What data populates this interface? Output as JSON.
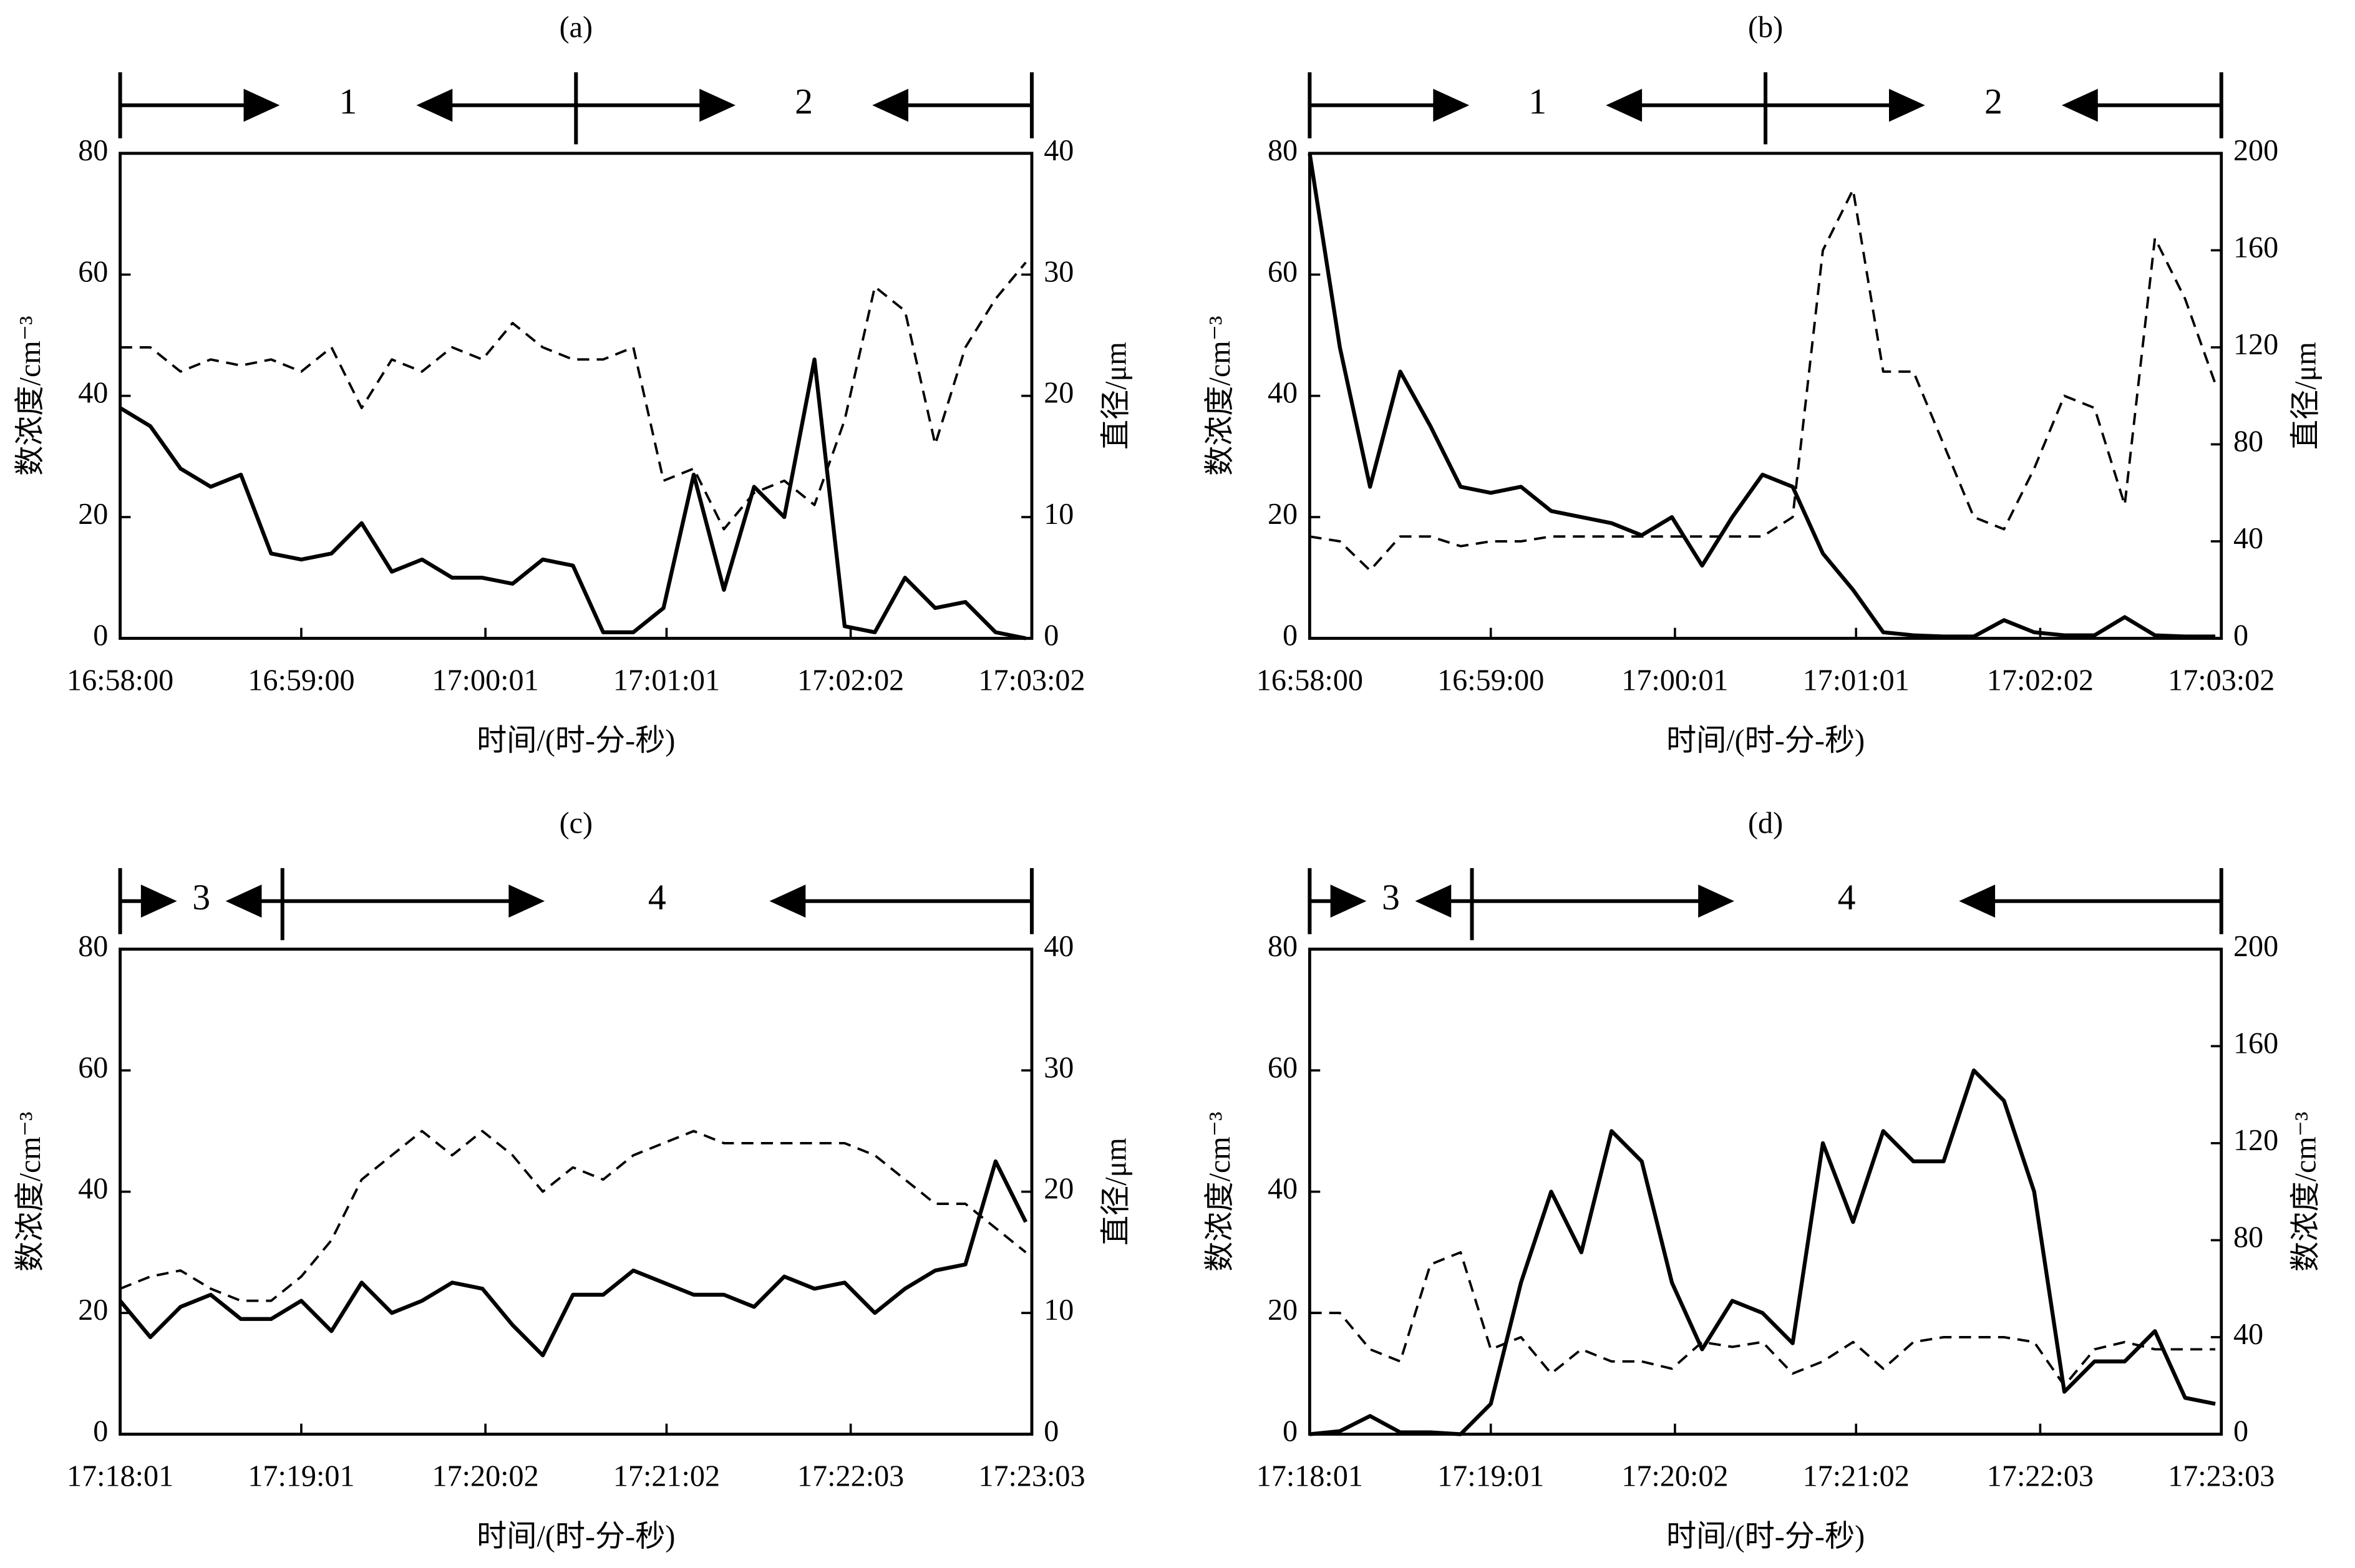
{
  "chart_data": [
    {
      "type": "line",
      "title": "(a)",
      "annotations": [
        "1",
        "2"
      ],
      "x": [
        "16:58:00",
        "16:58:10",
        "16:58:20",
        "16:58:30",
        "16:58:40",
        "16:58:50",
        "16:59:00",
        "16:59:10",
        "16:59:20",
        "16:59:30",
        "16:59:40",
        "16:59:50",
        "17:00:00",
        "17:00:10",
        "17:00:20",
        "17:00:30",
        "17:00:40",
        "17:00:50",
        "17:01:00",
        "17:01:10",
        "17:01:20",
        "17:01:30",
        "17:01:40",
        "17:01:50",
        "17:02:00",
        "17:02:10",
        "17:02:20",
        "17:02:30",
        "17:02:40",
        "17:02:50",
        "17:03:00"
      ],
      "series": [
        {
          "style": "solid",
          "color": "#000000",
          "values": [
            38,
            35,
            28,
            25,
            27,
            14,
            13,
            14,
            19,
            11,
            13,
            10,
            10,
            9,
            13,
            12,
            1,
            1,
            5,
            27,
            8,
            25,
            20,
            46,
            2,
            1,
            10,
            5,
            6,
            1,
            0
          ]
        },
        {
          "style": "dashed",
          "color": "#000000",
          "axis": "y2",
          "values": [
            24,
            24,
            22,
            23,
            22.5,
            23,
            22,
            24,
            19,
            23,
            22,
            24,
            23,
            26,
            24,
            23,
            23,
            24,
            13,
            14,
            9,
            12,
            13,
            11,
            18,
            29,
            27,
            16,
            24,
            28,
            31
          ]
        }
      ],
      "xlim": [
        "16:58:00",
        "17:03:02"
      ],
      "xticks": [
        "16:58:00",
        "16:59:00",
        "17:00:01",
        "17:01:01",
        "17:02:02",
        "17:03:02"
      ],
      "ylim": [
        0,
        80
      ],
      "yticks": [
        0,
        20,
        40,
        60,
        80
      ],
      "y2lim": [
        0,
        40
      ],
      "y2ticks": [
        0,
        10,
        20,
        30,
        40
      ],
      "xlabel": "时间/(时-分-秒)",
      "ylabel": "数浓度/cm⁻³",
      "y2label": "直径/μm"
    },
    {
      "type": "line",
      "title": "(b)",
      "annotations": [
        "1",
        "2"
      ],
      "x": [
        "16:58:00",
        "16:58:10",
        "16:58:20",
        "16:58:30",
        "16:58:40",
        "16:58:50",
        "16:59:00",
        "16:59:10",
        "16:59:20",
        "16:59:30",
        "16:59:40",
        "16:59:50",
        "17:00:00",
        "17:00:10",
        "17:00:20",
        "17:00:30",
        "17:00:40",
        "17:00:50",
        "17:01:00",
        "17:01:10",
        "17:01:20",
        "17:01:30",
        "17:01:40",
        "17:01:50",
        "17:02:00",
        "17:02:10",
        "17:02:20",
        "17:02:30",
        "17:02:40",
        "17:02:50",
        "17:03:00"
      ],
      "series": [
        {
          "style": "solid",
          "color": "#000000",
          "values": [
            80,
            48,
            25,
            44,
            35,
            25,
            24,
            25,
            21,
            20,
            19,
            17,
            20,
            12,
            20,
            27,
            25,
            14,
            8,
            1,
            0.5,
            0.3,
            0.3,
            3,
            1,
            0.5,
            0.5,
            3.5,
            0.5,
            0.3,
            0.3
          ]
        },
        {
          "style": "dashed",
          "color": "#000000",
          "axis": "y2",
          "values": [
            42,
            40,
            28,
            42,
            42,
            38,
            40,
            40,
            42,
            42,
            42,
            42,
            42,
            42,
            42,
            42,
            50,
            160,
            185,
            110,
            110,
            80,
            50,
            45,
            70,
            100,
            95,
            55,
            165,
            140,
            105
          ]
        }
      ],
      "xlim": [
        "16:58:00",
        "17:03:02"
      ],
      "xticks": [
        "16:58:00",
        "16:59:00",
        "17:00:01",
        "17:01:01",
        "17:02:02",
        "17:03:02"
      ],
      "ylim": [
        0,
        80
      ],
      "yticks": [
        0,
        20,
        40,
        60,
        80
      ],
      "y2lim": [
        0,
        200
      ],
      "y2ticks": [
        0,
        40,
        80,
        120,
        160,
        200
      ],
      "xlabel": "时间/(时-分-秒)",
      "ylabel": "数浓度/cm⁻³",
      "y2label": "直径/μm"
    },
    {
      "type": "line",
      "title": "(c)",
      "annotations": [
        "3",
        "4"
      ],
      "x": [
        "17:18:01",
        "17:18:11",
        "17:18:21",
        "17:18:31",
        "17:18:41",
        "17:18:51",
        "17:19:01",
        "17:19:11",
        "17:19:21",
        "17:19:31",
        "17:19:41",
        "17:19:51",
        "17:20:01",
        "17:20:11",
        "17:20:21",
        "17:20:31",
        "17:20:41",
        "17:20:51",
        "17:21:01",
        "17:21:11",
        "17:21:21",
        "17:21:31",
        "17:21:41",
        "17:21:51",
        "17:22:01",
        "17:22:11",
        "17:22:21",
        "17:22:31",
        "17:22:41",
        "17:22:51",
        "17:23:01"
      ],
      "series": [
        {
          "style": "solid",
          "color": "#000000",
          "values": [
            22,
            16,
            21,
            23,
            19,
            19,
            22,
            17,
            25,
            20,
            22,
            25,
            24,
            18,
            13,
            23,
            23,
            27,
            25,
            23,
            23,
            21,
            26,
            24,
            25,
            20,
            24,
            27,
            28,
            45,
            35
          ]
        },
        {
          "style": "dashed",
          "color": "#000000",
          "axis": "y2",
          "values": [
            12,
            13,
            13.5,
            12,
            11,
            11,
            13,
            16,
            21,
            23,
            25,
            23,
            25,
            23,
            20,
            22,
            21,
            23,
            24,
            25,
            24,
            24,
            24,
            24,
            24,
            23,
            21,
            19,
            19,
            17,
            15
          ]
        }
      ],
      "xlim": [
        "17:18:01",
        "17:23:03"
      ],
      "xticks": [
        "17:18:01",
        "17:19:01",
        "17:20:02",
        "17:21:02",
        "17:22:03",
        "17:23:03"
      ],
      "ylim": [
        0,
        80
      ],
      "yticks": [
        0,
        20,
        40,
        60,
        80
      ],
      "y2lim": [
        0,
        40
      ],
      "y2ticks": [
        0,
        10,
        20,
        30,
        40
      ],
      "xlabel": "时间/(时-分-秒)",
      "ylabel": "数浓度/cm⁻³",
      "y2label": "直径/μm"
    },
    {
      "type": "line",
      "title": "(d)",
      "annotations": [
        "3",
        "4"
      ],
      "x": [
        "17:18:01",
        "17:18:11",
        "17:18:21",
        "17:18:31",
        "17:18:41",
        "17:18:51",
        "17:19:01",
        "17:19:11",
        "17:19:21",
        "17:19:31",
        "17:19:41",
        "17:19:51",
        "17:20:01",
        "17:20:11",
        "17:20:21",
        "17:20:31",
        "17:20:41",
        "17:20:51",
        "17:21:01",
        "17:21:11",
        "17:21:21",
        "17:21:31",
        "17:21:41",
        "17:21:51",
        "17:22:01",
        "17:22:11",
        "17:22:21",
        "17:22:31",
        "17:22:41",
        "17:22:51",
        "17:23:01"
      ],
      "series": [
        {
          "style": "solid",
          "color": "#000000",
          "values": [
            0,
            0.5,
            3,
            0.3,
            0.3,
            0,
            5,
            25,
            40,
            30,
            50,
            45,
            25,
            14,
            22,
            20,
            15,
            48,
            35,
            50,
            45,
            45,
            60,
            55,
            40,
            7,
            12,
            12,
            17,
            6,
            5
          ]
        },
        {
          "style": "dashed",
          "color": "#000000",
          "axis": "y2",
          "values": [
            50,
            50,
            35,
            30,
            70,
            75,
            35,
            40,
            25,
            35,
            30,
            30,
            27,
            38,
            36,
            38,
            25,
            30,
            38,
            27,
            38,
            40,
            40,
            40,
            38,
            20,
            35,
            38,
            35,
            35,
            35
          ]
        }
      ],
      "xlim": [
        "17:18:01",
        "17:23:03"
      ],
      "xticks": [
        "17:18:01",
        "17:19:01",
        "17:20:02",
        "17:21:02",
        "17:22:03",
        "17:23:03"
      ],
      "ylim": [
        0,
        80
      ],
      "yticks": [
        0,
        20,
        40,
        60,
        80
      ],
      "y2lim": [
        0,
        200
      ],
      "y2ticks": [
        0,
        40,
        80,
        120,
        160,
        200
      ],
      "xlabel": "时间/(时-分-秒)",
      "ylabel": "数浓度/cm⁻³",
      "y2label": "数浓度/cm⁻³"
    }
  ]
}
